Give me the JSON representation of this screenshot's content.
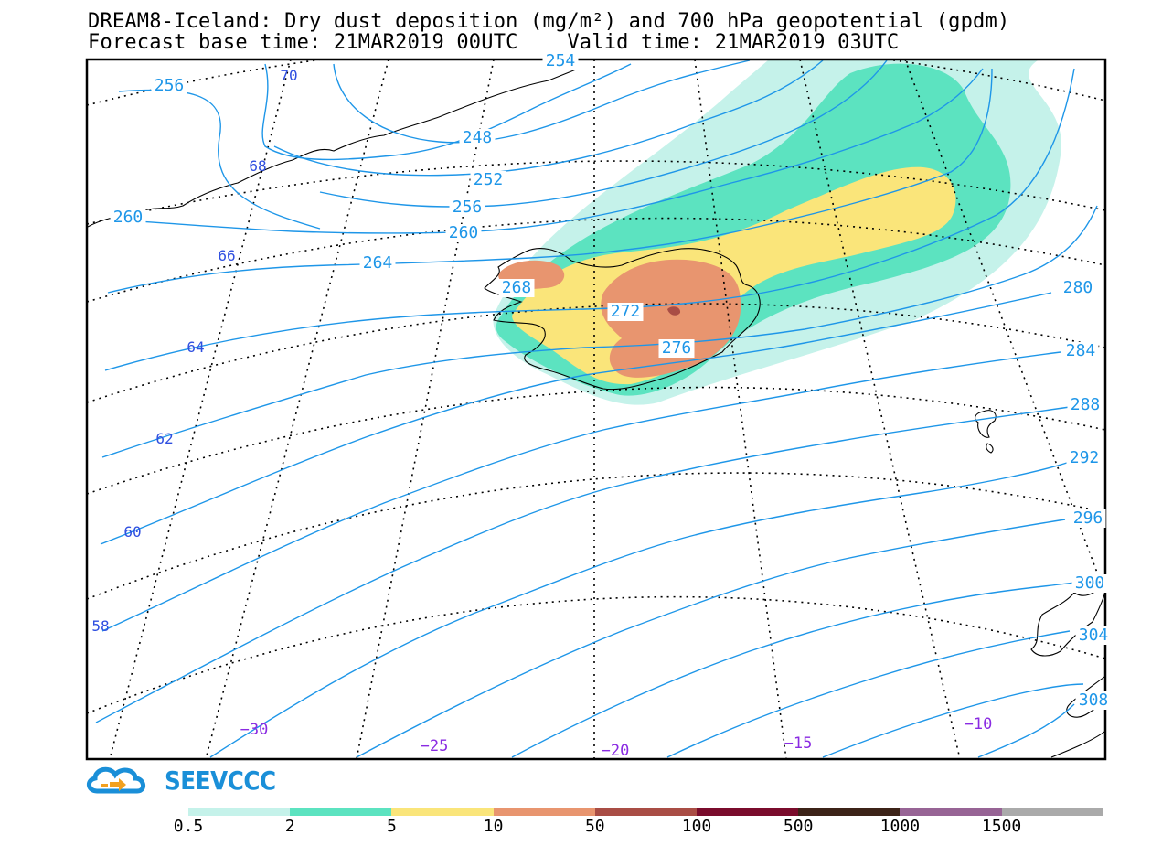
{
  "header": {
    "title_line1": "DREAM8-Iceland: Dry dust deposition (mg/m²) and 700 hPa geopotential (gpdm)",
    "title_line2": "Forecast base time: 21MAR2019 00UTC    Valid time: 21MAR2019 03UTC"
  },
  "contours": {
    "geopotential_labels": [
      "254",
      "256",
      "248",
      "252",
      "256",
      "260",
      "260",
      "264",
      "268",
      "272",
      "276",
      "280",
      "284",
      "288",
      "292",
      "296",
      "300",
      "304",
      "308"
    ],
    "line_color": "#1e96e8"
  },
  "graticule": {
    "latitude_labels": [
      "70",
      "68",
      "66",
      "64",
      "62",
      "60",
      "58"
    ],
    "longitude_labels": [
      "−30",
      "−25",
      "−20",
      "−15",
      "−10"
    ],
    "lat_label_color": "#2f4fe0",
    "lon_label_color": "#8a2be2"
  },
  "dust_shading": {
    "levels": [
      "0.5",
      "2",
      "5",
      "10",
      "50",
      "100",
      "500",
      "1000",
      "1500"
    ],
    "colors": [
      "#c5f2ea",
      "#5ce3c0",
      "#fae57a",
      "#e8956f",
      "#a94d45",
      "#7a0c2c",
      "#3c2318",
      "#976495",
      "#aaaaaa"
    ]
  },
  "logo": {
    "text": "SEEVCCC",
    "icon": "cloud-arrow-icon",
    "color": "#1a8fd8"
  }
}
